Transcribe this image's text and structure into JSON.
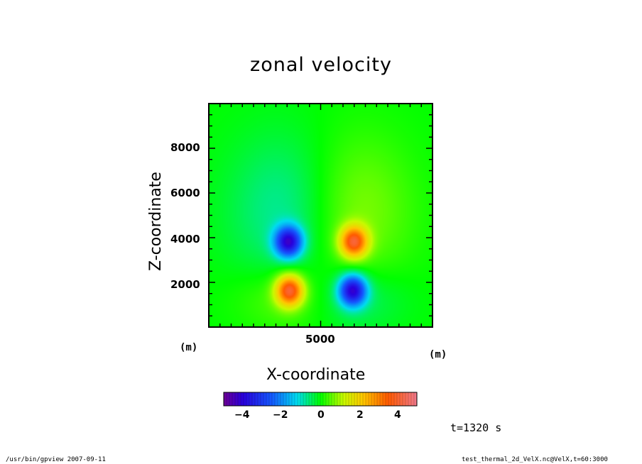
{
  "chart_data": {
    "type": "heatmap",
    "title": "zonal velocity",
    "xlabel": "X-coordinate",
    "ylabel": "Z-coordinate",
    "x_unit": "(m)",
    "y_unit": "(m)",
    "xlim": [
      0,
      10000
    ],
    "ylim": [
      0,
      10000
    ],
    "x_ticks": [
      "5000"
    ],
    "y_ticks": [
      "2000",
      "4000",
      "6000",
      "8000"
    ],
    "colorbar": {
      "range": [
        -5,
        5
      ],
      "ticks": [
        "−4",
        "−2",
        "0",
        "2",
        "4"
      ],
      "colormap": "rainbow"
    },
    "features": [
      {
        "x": 3550,
        "z": 3800,
        "value": -3.8
      },
      {
        "x": 6500,
        "z": 3800,
        "value": 3.6
      },
      {
        "x": 3600,
        "z": 1600,
        "value": 3.8
      },
      {
        "x": 6450,
        "z": 1600,
        "value": -3.9
      }
    ]
  },
  "footer": {
    "left": "/usr/bin/gpview   2007-09-11",
    "right": "test_thermal_2d_VelX.nc@VelX,t=60:3000"
  },
  "time_label": "t=1320 s"
}
